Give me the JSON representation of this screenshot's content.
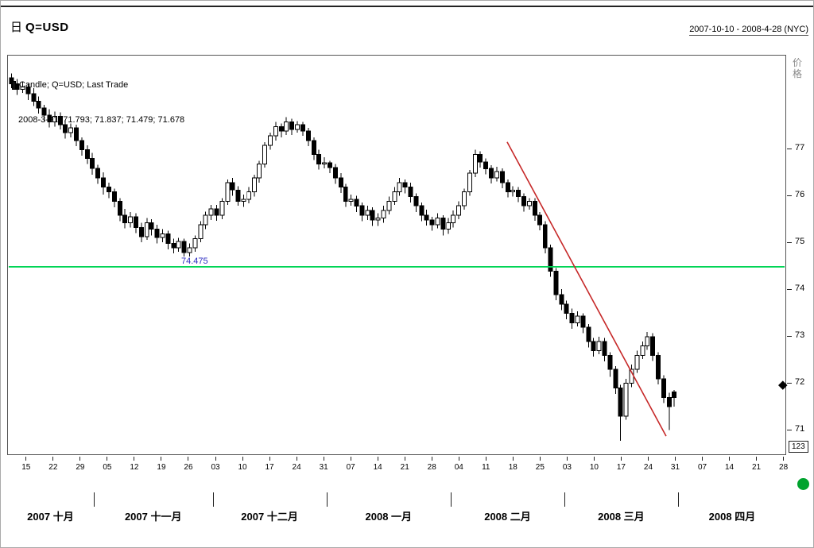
{
  "header": {
    "interval_label": "日",
    "symbol_title": "Q=USD",
    "date_range": "2007-10-10 - 2008-4-28 (NYC)"
  },
  "legend": {
    "line1": "Candle; Q=USD; Last Trade",
    "line2": "2008-3-31; 71.793; 71.837; 71.479; 71.678"
  },
  "y_axis": {
    "label": "价格",
    "ticks": [
      77,
      76,
      75,
      74,
      73,
      72,
      71
    ],
    "min": 70.46,
    "max": 79.0,
    "footer_box": "123"
  },
  "x_axis": {
    "week_ticks": [
      {
        "slot": 3,
        "label": "15"
      },
      {
        "slot": 8,
        "label": "22"
      },
      {
        "slot": 13,
        "label": "29"
      },
      {
        "slot": 18,
        "label": "05"
      },
      {
        "slot": 23,
        "label": "12"
      },
      {
        "slot": 28,
        "label": "19"
      },
      {
        "slot": 33,
        "label": "26"
      },
      {
        "slot": 38,
        "label": "03"
      },
      {
        "slot": 43,
        "label": "10"
      },
      {
        "slot": 48,
        "label": "17"
      },
      {
        "slot": 53,
        "label": "24"
      },
      {
        "slot": 58,
        "label": "31"
      },
      {
        "slot": 63,
        "label": "07"
      },
      {
        "slot": 68,
        "label": "14"
      },
      {
        "slot": 73,
        "label": "21"
      },
      {
        "slot": 78,
        "label": "28"
      },
      {
        "slot": 83,
        "label": "04"
      },
      {
        "slot": 88,
        "label": "11"
      },
      {
        "slot": 93,
        "label": "18"
      },
      {
        "slot": 98,
        "label": "25"
      },
      {
        "slot": 103,
        "label": "03"
      },
      {
        "slot": 108,
        "label": "10"
      },
      {
        "slot": 113,
        "label": "17"
      },
      {
        "slot": 118,
        "label": "24"
      },
      {
        "slot": 123,
        "label": "31"
      },
      {
        "slot": 128,
        "label": "07"
      },
      {
        "slot": 133,
        "label": "14"
      },
      {
        "slot": 138,
        "label": "21"
      },
      {
        "slot": 143,
        "label": "28"
      }
    ],
    "months": [
      {
        "label": "2007 十月",
        "start": 0,
        "end": 16
      },
      {
        "label": "2007 十一月",
        "start": 16,
        "end": 38
      },
      {
        "label": "2007 十二月",
        "start": 38,
        "end": 59
      },
      {
        "label": "2008 一月",
        "start": 59,
        "end": 82
      },
      {
        "label": "2008 二月",
        "start": 82,
        "end": 103
      },
      {
        "label": "2008 三月",
        "start": 103,
        "end": 124
      },
      {
        "label": "2008 四月",
        "start": 124,
        "end": 144
      }
    ]
  },
  "overlays": {
    "hline": {
      "value": 74.475,
      "label": "74.475",
      "color": "#00d455",
      "label_color": "#2a2ac0"
    },
    "trendline": {
      "from": {
        "index": 92,
        "price": 77.15
      },
      "to": {
        "index": 121.5,
        "price": 70.85
      },
      "color": "#c62828"
    },
    "price_marker": {
      "price": 71.95,
      "glyph": "◆",
      "color": "#000000"
    },
    "status_dot_color": "#00a32e"
  },
  "chart_data": {
    "type": "candlestick",
    "title": "Q=USD Last Trade, daily candles",
    "symbol": "Q=USD",
    "period": "daily",
    "x_range": [
      "2007-10-10",
      "2008-4-28"
    ],
    "ylim": [
      70.46,
      79.0
    ],
    "total_slots": 144,
    "up_color": "#ffffff",
    "down_color": "#000000",
    "wick_color": "#000000",
    "columns": [
      "date",
      "open",
      "high",
      "low",
      "close"
    ],
    "candles": [
      [
        "2007-10-10",
        78.52,
        78.62,
        78.3,
        78.4
      ],
      [
        "2007-10-11",
        78.4,
        78.5,
        78.16,
        78.28
      ],
      [
        "2007-10-12",
        78.28,
        78.45,
        78.2,
        78.33
      ],
      [
        "2007-10-15",
        78.33,
        78.4,
        78.05,
        78.18
      ],
      [
        "2007-10-16",
        78.18,
        78.3,
        77.92,
        78.02
      ],
      [
        "2007-10-17",
        78.02,
        78.12,
        77.76,
        77.88
      ],
      [
        "2007-10-18",
        77.88,
        77.95,
        77.6,
        77.72
      ],
      [
        "2007-10-19",
        77.72,
        77.85,
        77.46,
        77.58
      ],
      [
        "2007-10-22",
        77.58,
        77.8,
        77.48,
        77.7
      ],
      [
        "2007-10-23",
        77.7,
        77.78,
        77.42,
        77.52
      ],
      [
        "2007-10-24",
        77.52,
        77.62,
        77.22,
        77.35
      ],
      [
        "2007-10-25",
        77.35,
        77.55,
        77.25,
        77.45
      ],
      [
        "2007-10-26",
        77.45,
        77.52,
        77.06,
        77.18
      ],
      [
        "2007-10-29",
        77.18,
        77.25,
        76.86,
        76.98
      ],
      [
        "2007-10-30",
        76.98,
        77.08,
        76.68,
        76.8
      ],
      [
        "2007-10-31",
        76.8,
        76.92,
        76.45,
        76.58
      ],
      [
        "2007-11-01",
        76.58,
        76.66,
        76.25,
        76.38
      ],
      [
        "2007-11-02",
        76.38,
        76.5,
        76.02,
        76.18
      ],
      [
        "2007-11-05",
        76.18,
        76.28,
        75.95,
        76.08
      ],
      [
        "2007-11-06",
        76.08,
        76.15,
        75.75,
        75.88
      ],
      [
        "2007-11-07",
        75.88,
        75.95,
        75.45,
        75.58
      ],
      [
        "2007-11-08",
        75.58,
        75.72,
        75.3,
        75.42
      ],
      [
        "2007-11-09",
        75.42,
        75.65,
        75.32,
        75.55
      ],
      [
        "2007-11-12",
        75.55,
        75.62,
        75.2,
        75.32
      ],
      [
        "2007-11-13",
        75.32,
        75.42,
        75.0,
        75.12
      ],
      [
        "2007-11-14",
        75.12,
        75.52,
        75.05,
        75.42
      ],
      [
        "2007-11-15",
        75.42,
        75.5,
        75.15,
        75.28
      ],
      [
        "2007-11-16",
        75.28,
        75.38,
        74.98,
        75.1
      ],
      [
        "2007-11-19",
        75.1,
        75.28,
        75.0,
        75.18
      ],
      [
        "2007-11-20",
        75.18,
        75.25,
        74.85,
        74.98
      ],
      [
        "2007-11-21",
        74.98,
        75.08,
        74.76,
        74.88
      ],
      [
        "2007-11-22",
        74.88,
        75.1,
        74.8,
        75.02
      ],
      [
        "2007-11-23",
        75.02,
        75.08,
        74.68,
        74.78
      ],
      [
        "2007-11-26",
        74.78,
        74.98,
        74.7,
        74.88
      ],
      [
        "2007-11-27",
        74.88,
        75.15,
        74.8,
        75.08
      ],
      [
        "2007-11-28",
        75.08,
        75.45,
        75.0,
        75.38
      ],
      [
        "2007-11-29",
        75.38,
        75.66,
        75.28,
        75.58
      ],
      [
        "2007-11-30",
        75.58,
        75.8,
        75.48,
        75.72
      ],
      [
        "2007-12-03",
        75.72,
        75.8,
        75.46,
        75.58
      ],
      [
        "2007-12-04",
        75.58,
        75.95,
        75.5,
        75.88
      ],
      [
        "2007-12-05",
        75.88,
        76.35,
        75.8,
        76.28
      ],
      [
        "2007-12-06",
        76.28,
        76.38,
        76.0,
        76.12
      ],
      [
        "2007-12-07",
        76.12,
        76.2,
        75.78,
        75.88
      ],
      [
        "2007-12-10",
        75.88,
        76.02,
        75.76,
        75.92
      ],
      [
        "2007-12-11",
        75.92,
        76.18,
        75.84,
        76.08
      ],
      [
        "2007-12-12",
        76.08,
        76.45,
        75.98,
        76.38
      ],
      [
        "2007-12-13",
        76.38,
        76.75,
        76.28,
        76.68
      ],
      [
        "2007-12-14",
        76.68,
        77.15,
        76.6,
        77.08
      ],
      [
        "2007-12-17",
        77.08,
        77.35,
        76.98,
        77.28
      ],
      [
        "2007-12-18",
        77.28,
        77.58,
        77.18,
        77.48
      ],
      [
        "2007-12-19",
        77.48,
        77.55,
        77.25,
        77.38
      ],
      [
        "2007-12-20",
        77.38,
        77.68,
        77.3,
        77.58
      ],
      [
        "2007-12-21",
        77.58,
        77.65,
        77.3,
        77.42
      ],
      [
        "2007-12-24",
        77.42,
        77.6,
        77.35,
        77.52
      ],
      [
        "2007-12-25",
        77.52,
        77.58,
        77.28,
        77.38
      ],
      [
        "2007-12-26",
        77.38,
        77.45,
        77.06,
        77.18
      ],
      [
        "2007-12-27",
        77.18,
        77.25,
        76.76,
        76.88
      ],
      [
        "2007-12-28",
        76.88,
        76.98,
        76.56,
        76.68
      ],
      [
        "2007-12-31",
        76.68,
        76.82,
        76.58,
        76.7
      ],
      [
        "2008-01-01",
        76.7,
        76.75,
        76.48,
        76.6
      ],
      [
        "2008-01-02",
        76.6,
        76.68,
        76.25,
        76.38
      ],
      [
        "2008-01-03",
        76.38,
        76.48,
        76.06,
        76.18
      ],
      [
        "2008-01-04",
        76.18,
        76.25,
        75.76,
        75.88
      ],
      [
        "2008-01-07",
        75.88,
        76.02,
        75.78,
        75.92
      ],
      [
        "2008-01-08",
        75.92,
        76.0,
        75.65,
        75.78
      ],
      [
        "2008-01-09",
        75.78,
        75.85,
        75.45,
        75.58
      ],
      [
        "2008-01-10",
        75.58,
        75.78,
        75.48,
        75.68
      ],
      [
        "2008-01-11",
        75.68,
        75.75,
        75.35,
        75.48
      ],
      [
        "2008-01-14",
        75.48,
        75.62,
        75.35,
        75.52
      ],
      [
        "2008-01-15",
        75.52,
        75.78,
        75.42,
        75.68
      ],
      [
        "2008-01-16",
        75.68,
        75.98,
        75.6,
        75.88
      ],
      [
        "2008-01-17",
        75.88,
        76.18,
        75.8,
        76.08
      ],
      [
        "2008-01-18",
        76.08,
        76.38,
        76.0,
        76.28
      ],
      [
        "2008-01-21",
        76.28,
        76.35,
        76.05,
        76.18
      ],
      [
        "2008-01-22",
        76.18,
        76.28,
        75.85,
        75.98
      ],
      [
        "2008-01-23",
        75.98,
        76.05,
        75.65,
        75.78
      ],
      [
        "2008-01-24",
        75.78,
        75.85,
        75.45,
        75.58
      ],
      [
        "2008-01-25",
        75.58,
        75.7,
        75.36,
        75.48
      ],
      [
        "2008-01-28",
        75.48,
        75.55,
        75.25,
        75.38
      ],
      [
        "2008-01-29",
        75.38,
        75.62,
        75.3,
        75.52
      ],
      [
        "2008-01-30",
        75.52,
        75.58,
        75.15,
        75.28
      ],
      [
        "2008-01-31",
        75.28,
        75.52,
        75.18,
        75.42
      ],
      [
        "2008-02-01",
        75.42,
        75.68,
        75.32,
        75.58
      ],
      [
        "2008-02-04",
        75.58,
        75.88,
        75.5,
        75.78
      ],
      [
        "2008-02-05",
        75.78,
        76.15,
        75.7,
        76.08
      ],
      [
        "2008-02-06",
        76.08,
        76.55,
        76.0,
        76.48
      ],
      [
        "2008-02-07",
        76.48,
        76.98,
        76.4,
        76.88
      ],
      [
        "2008-02-08",
        76.88,
        76.95,
        76.6,
        76.72
      ],
      [
        "2008-02-11",
        76.72,
        76.8,
        76.46,
        76.58
      ],
      [
        "2008-02-12",
        76.58,
        76.65,
        76.26,
        76.38
      ],
      [
        "2008-02-13",
        76.38,
        76.62,
        76.3,
        76.52
      ],
      [
        "2008-02-14",
        76.52,
        76.58,
        76.16,
        76.28
      ],
      [
        "2008-02-15",
        76.28,
        76.35,
        75.96,
        76.08
      ],
      [
        "2008-02-18",
        76.08,
        76.2,
        75.98,
        76.12
      ],
      [
        "2008-02-19",
        76.12,
        76.18,
        75.86,
        75.98
      ],
      [
        "2008-02-20",
        75.98,
        76.05,
        75.66,
        75.78
      ],
      [
        "2008-02-21",
        75.78,
        75.95,
        75.7,
        75.88
      ],
      [
        "2008-02-22",
        75.88,
        75.95,
        75.46,
        75.58
      ],
      [
        "2008-02-25",
        75.58,
        75.65,
        75.26,
        75.38
      ],
      [
        "2008-02-26",
        75.38,
        75.45,
        74.76,
        74.88
      ],
      [
        "2008-02-27",
        74.88,
        74.95,
        74.26,
        74.38
      ],
      [
        "2008-02-28",
        74.38,
        74.45,
        73.76,
        73.88
      ],
      [
        "2008-02-29",
        73.88,
        74.0,
        73.55,
        73.68
      ],
      [
        "2008-03-03",
        73.68,
        73.75,
        73.35,
        73.48
      ],
      [
        "2008-03-04",
        73.48,
        73.58,
        73.15,
        73.28
      ],
      [
        "2008-03-05",
        73.28,
        73.52,
        73.2,
        73.42
      ],
      [
        "2008-03-06",
        73.42,
        73.48,
        73.05,
        73.18
      ],
      [
        "2008-03-07",
        73.18,
        73.25,
        72.75,
        72.88
      ],
      [
        "2008-03-10",
        72.88,
        72.95,
        72.55,
        72.68
      ],
      [
        "2008-03-11",
        72.68,
        72.98,
        72.6,
        72.88
      ],
      [
        "2008-03-12",
        72.88,
        72.95,
        72.45,
        72.58
      ],
      [
        "2008-03-13",
        72.58,
        72.65,
        72.12,
        72.28
      ],
      [
        "2008-03-14",
        72.28,
        72.35,
        71.75,
        71.88
      ],
      [
        "2008-03-17",
        71.88,
        71.95,
        70.75,
        71.28
      ],
      [
        "2008-03-18",
        71.28,
        72.08,
        71.2,
        71.98
      ],
      [
        "2008-03-19",
        71.98,
        72.38,
        71.9,
        72.28
      ],
      [
        "2008-03-20",
        72.28,
        72.68,
        72.2,
        72.58
      ],
      [
        "2008-03-21",
        72.58,
        72.88,
        72.5,
        72.78
      ],
      [
        "2008-03-24",
        72.78,
        73.08,
        72.7,
        72.98
      ],
      [
        "2008-03-25",
        72.98,
        73.05,
        72.46,
        72.58
      ],
      [
        "2008-03-26",
        72.58,
        72.65,
        71.96,
        72.08
      ],
      [
        "2008-03-27",
        72.08,
        72.15,
        71.56,
        71.68
      ],
      [
        "2008-03-28",
        71.68,
        71.78,
        70.98,
        71.48
      ],
      [
        "2008-03-31",
        71.793,
        71.837,
        71.479,
        71.678
      ]
    ]
  }
}
